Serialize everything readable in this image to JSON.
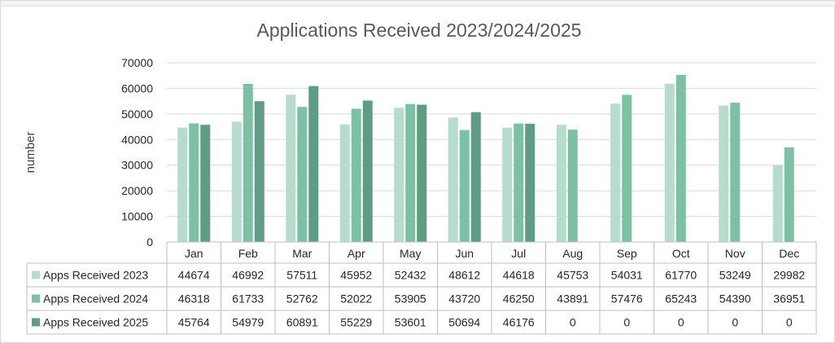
{
  "chart_data": {
    "type": "bar",
    "title": "Applications Received 2023/2024/2025",
    "xlabel": "",
    "ylabel": "number",
    "ylim": [
      0,
      70000
    ],
    "yticks": [
      0,
      10000,
      20000,
      30000,
      40000,
      50000,
      60000,
      70000
    ],
    "grid": true,
    "legend": "data-table",
    "categories": [
      "Jan",
      "Feb",
      "Mar",
      "Apr",
      "May",
      "Jun",
      "Jul",
      "Aug",
      "Sep",
      "Oct",
      "Nov",
      "Dec"
    ],
    "series": [
      {
        "name": "Apps Received 2023",
        "color": "#b6dccd",
        "values": [
          44674,
          46992,
          57511,
          45952,
          52432,
          48612,
          44618,
          45753,
          54031,
          61770,
          53249,
          29982
        ]
      },
      {
        "name": "Apps Received 2024",
        "color": "#7dc1a5",
        "values": [
          46318,
          61733,
          52762,
          52022,
          53905,
          43720,
          46250,
          43891,
          57476,
          65243,
          54390,
          36951
        ]
      },
      {
        "name": "Apps Received 2025",
        "color": "#5e9c83",
        "values": [
          45764,
          54979,
          60891,
          55229,
          53601,
          50694,
          46176,
          0,
          0,
          0,
          0,
          0
        ]
      }
    ]
  }
}
